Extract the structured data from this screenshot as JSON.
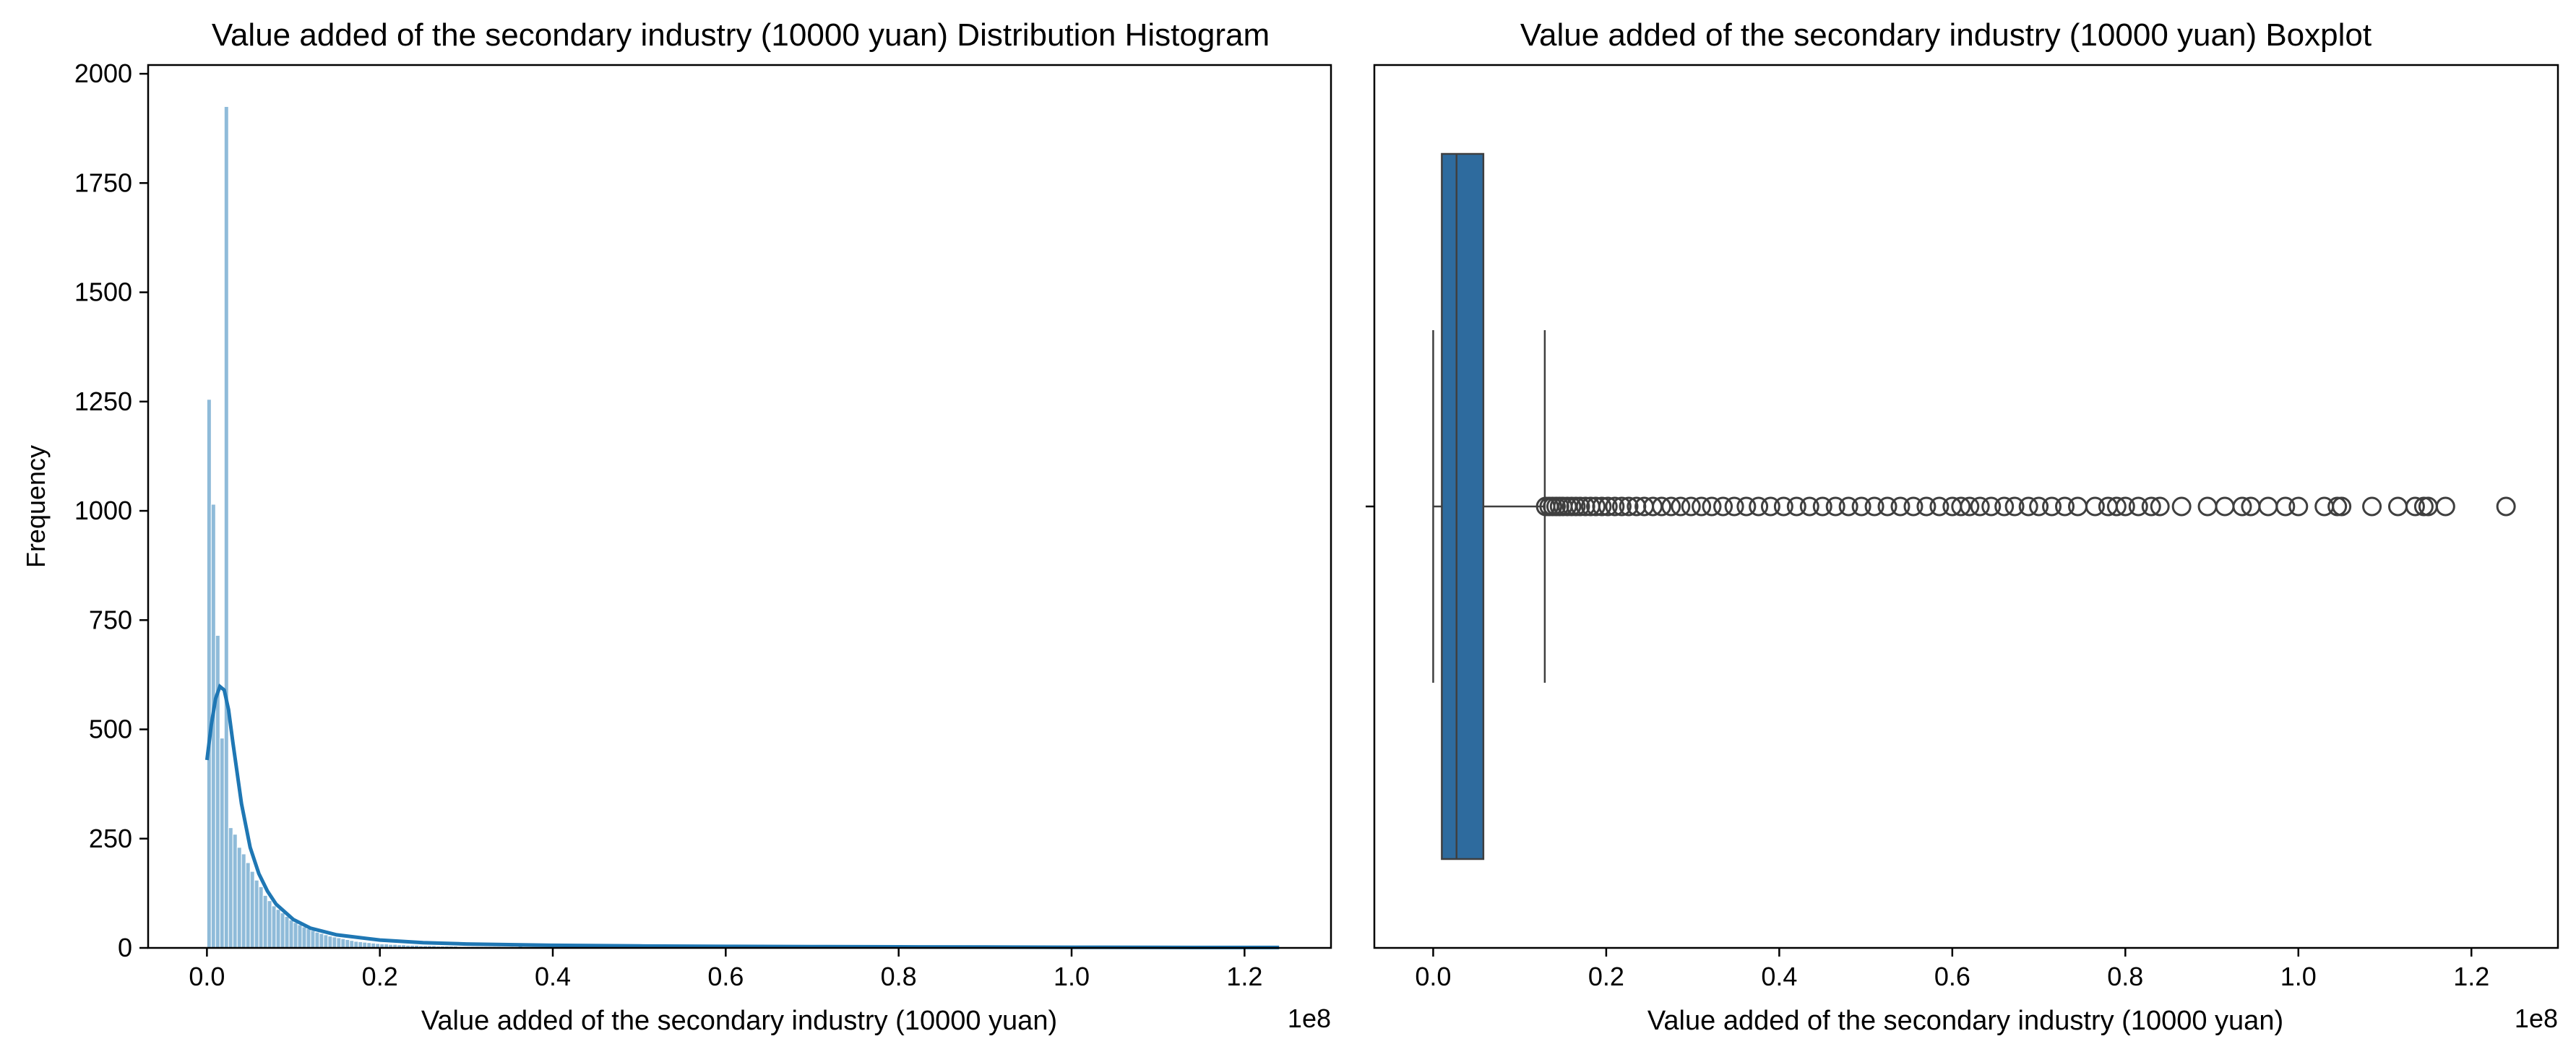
{
  "chart_data": [
    {
      "type": "histogram",
      "title": "Value added of the secondary industry (10000 yuan) Distribution Histogram",
      "xlabel": "Value added of the secondary industry (10000 yuan)",
      "ylabel": "Frequency",
      "x_offset_label": "1e8",
      "xlim": [
        -0.068,
        1.3
      ],
      "ylim": [
        0,
        2020
      ],
      "xticks": [
        0.0,
        0.2,
        0.4,
        0.6,
        0.8,
        1.0,
        1.2
      ],
      "xtick_labels": [
        "0.0",
        "0.2",
        "0.4",
        "0.6",
        "0.8",
        "1.0",
        "1.2"
      ],
      "yticks": [
        0,
        250,
        500,
        750,
        1000,
        1250,
        1500,
        1750,
        2000
      ],
      "ytick_labels": [
        "0",
        "250",
        "500",
        "750",
        "1000",
        "1250",
        "1500",
        "1750",
        "2000"
      ],
      "bin_start": 0.0,
      "bin_width": 0.005,
      "counts": [
        1255,
        1015,
        715,
        480,
        1925,
        275,
        260,
        230,
        215,
        195,
        175,
        155,
        140,
        120,
        108,
        96,
        88,
        80,
        72,
        64,
        58,
        53,
        48,
        44,
        40,
        36,
        33,
        30,
        27,
        25,
        23,
        21,
        19,
        17,
        15,
        14,
        13,
        12,
        11,
        10,
        9,
        9,
        8,
        8,
        7,
        7,
        6,
        6,
        6,
        5,
        5,
        5,
        5,
        4,
        4,
        4,
        4,
        4,
        3,
        3,
        3,
        3,
        3,
        3,
        3,
        3,
        3,
        3,
        2,
        2,
        3,
        2,
        8,
        2,
        2,
        2,
        2,
        2,
        2,
        2,
        2,
        2,
        2,
        2,
        2,
        1,
        1,
        1,
        1,
        1,
        1,
        1,
        1,
        1,
        1,
        1,
        1,
        1,
        1,
        1
      ],
      "kde": {
        "x": [
          0.0,
          0.005,
          0.01,
          0.015,
          0.02,
          0.025,
          0.03,
          0.04,
          0.05,
          0.06,
          0.07,
          0.08,
          0.1,
          0.12,
          0.15,
          0.2,
          0.25,
          0.3,
          0.4,
          0.5,
          0.6,
          0.7,
          0.8,
          0.9,
          1.0,
          1.1,
          1.2,
          1.24
        ],
        "y": [
          430,
          510,
          570,
          598,
          590,
          545,
          470,
          330,
          230,
          170,
          130,
          100,
          65,
          45,
          30,
          18,
          12,
          9,
          6,
          4.5,
          3.5,
          3,
          2.5,
          2,
          1.5,
          1.2,
          1,
          1
        ]
      },
      "color": "#1f77b4"
    },
    {
      "type": "boxplot",
      "title": "Value added of the secondary industry (10000 yuan) Boxplot",
      "xlabel": "Value added of the secondary industry (10000 yuan)",
      "x_offset_label": "1e8",
      "xlim": [
        -0.068,
        1.3
      ],
      "xticks": [
        0.0,
        0.2,
        0.4,
        0.6,
        0.8,
        1.0,
        1.2
      ],
      "xtick_labels": [
        "0.0",
        "0.2",
        "0.4",
        "0.6",
        "0.8",
        "1.0",
        "1.2"
      ],
      "whisker_low": 0.0,
      "q1": 0.01,
      "median": 0.027,
      "q3": 0.058,
      "whisker_high": 0.129,
      "outliers": [
        0.13,
        0.134,
        0.138,
        0.142,
        0.146,
        0.15,
        0.155,
        0.16,
        0.165,
        0.17,
        0.176,
        0.182,
        0.188,
        0.195,
        0.202,
        0.21,
        0.218,
        0.226,
        0.235,
        0.244,
        0.254,
        0.264,
        0.275,
        0.286,
        0.298,
        0.31,
        0.322,
        0.335,
        0.348,
        0.362,
        0.376,
        0.39,
        0.405,
        0.42,
        0.435,
        0.45,
        0.465,
        0.48,
        0.495,
        0.51,
        0.525,
        0.54,
        0.555,
        0.57,
        0.585,
        0.6,
        0.61,
        0.62,
        0.632,
        0.645,
        0.66,
        0.672,
        0.688,
        0.7,
        0.715,
        0.73,
        0.745,
        0.765,
        0.78,
        0.79,
        0.8,
        0.815,
        0.83,
        0.84,
        0.865,
        0.895,
        0.915,
        0.935,
        0.945,
        0.965,
        0.985,
        1.0,
        1.03,
        1.045,
        1.05,
        1.085,
        1.115,
        1.135,
        1.145,
        1.15,
        1.17,
        1.24
      ],
      "box_color": "#2e6b9e",
      "line_color": "#3f3f3f"
    }
  ]
}
